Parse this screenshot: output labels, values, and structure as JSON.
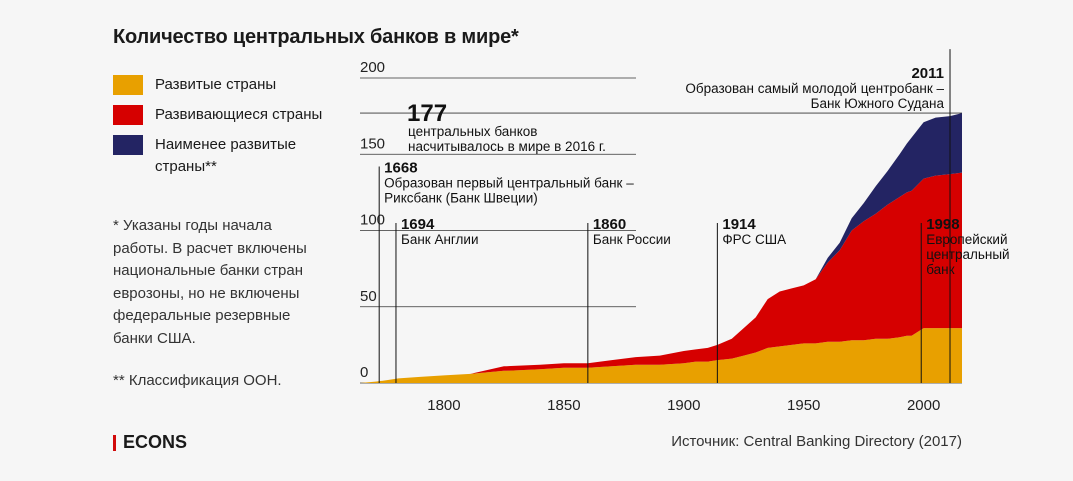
{
  "title": "Количество центральных банков в мире*",
  "legend": [
    {
      "label": "Развитые страны",
      "color": "#e8a000"
    },
    {
      "label": "Развивающиеся страны",
      "color": "#d60000"
    },
    {
      "label": "Наименее развитые\nстраны**",
      "color": "#232463"
    }
  ],
  "notes": {
    "footnote1": "* Указаны годы начала\nработы. В расчет включены\nнациональные банки стран\nеврозоны, но не включены\nфедеральные резервные\nбанки США.",
    "footnote2": "** Классификация ООН."
  },
  "brand": "ECONS",
  "source": "Источник: Central Banking Directory (2017)",
  "chart_data": {
    "type": "area",
    "stacked": true,
    "title": "Количество центральных банков в мире*",
    "xlim": [
      1765,
      2016
    ],
    "ylim": [
      0,
      200
    ],
    "x_ticks": [
      1800,
      1850,
      1900,
      1950,
      2000
    ],
    "y_ticks": [
      0,
      50,
      100,
      150,
      200
    ],
    "x": [
      1765,
      1772,
      1777,
      1781,
      1790,
      1800,
      1811,
      1825,
      1826,
      1840,
      1850,
      1860,
      1870,
      1880,
      1890,
      1900,
      1905,
      1910,
      1914,
      1920,
      1925,
      1930,
      1935,
      1940,
      1945,
      1950,
      1955,
      1960,
      1965,
      1970,
      1975,
      1980,
      1985,
      1990,
      1993,
      1995,
      2000,
      2005,
      2011,
      2016
    ],
    "series": [
      {
        "name": "Развитые страны",
        "values": [
          0,
          1,
          2,
          3,
          4,
          5,
          6,
          8,
          8,
          9,
          10,
          10,
          11,
          12,
          12,
          13,
          14,
          14,
          15,
          16,
          18,
          20,
          23,
          24,
          25,
          26,
          26,
          27,
          27,
          28,
          28,
          29,
          29,
          30,
          31,
          31,
          36,
          36,
          36,
          36
        ]
      },
      {
        "name": "Развивающиеся страны",
        "values": [
          0,
          0,
          0,
          0,
          0,
          0,
          0,
          3,
          3,
          3,
          3,
          3,
          4,
          5,
          6,
          8,
          8,
          9,
          10,
          13,
          18,
          23,
          32,
          36,
          37,
          38,
          42,
          52,
          60,
          72,
          78,
          82,
          88,
          92,
          94,
          95,
          98,
          100,
          101,
          102
        ]
      },
      {
        "name": "Наименее развитые\nстраны**",
        "values": [
          0,
          0,
          0,
          0,
          0,
          0,
          0,
          0,
          0,
          0,
          0,
          0,
          0,
          0,
          0,
          0,
          0,
          0,
          0,
          0,
          0,
          0,
          0,
          0,
          0,
          0,
          0,
          3,
          5,
          8,
          12,
          18,
          22,
          28,
          32,
          35,
          37,
          38,
          38,
          39
        ]
      }
    ],
    "annotations": [
      {
        "year": 1668,
        "label": "Образован первый центральный банк –\nРиксбанк (Банк Швеции)",
        "x": 1773,
        "y_top": 138
      },
      {
        "year": 1694,
        "label": "Банк Англии",
        "x": 1780,
        "y_top": 101
      },
      {
        "year": 1860,
        "label": "Банк России",
        "x": 1860,
        "y_top": 101
      },
      {
        "year": 1914,
        "label": "ФРС США",
        "x": 1914,
        "y_top": 101
      },
      {
        "year": 1998,
        "label": "Европейский\nцентральный\nбанк",
        "x": 1999,
        "y_top": 101
      },
      {
        "year": 2011,
        "label": "Образован самый молодой центробанк –\nБанк Южного Судана",
        "x": 2011,
        "y_top": 215
      }
    ],
    "total_label": {
      "value": "177",
      "text": "центральных банков\nнасчитывалось в мире в 2016 г."
    }
  }
}
